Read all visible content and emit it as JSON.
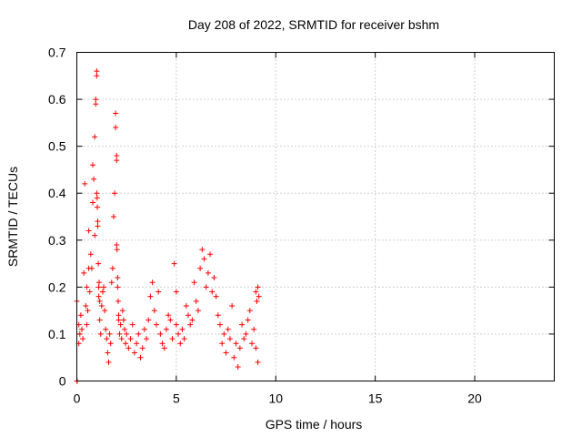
{
  "chart_data": {
    "type": "scatter",
    "title": "Day 208 of 2022, SRMTID for receiver bshm",
    "xlabel": "GPS time / hours",
    "ylabel": "SRMTID / TECUs",
    "xlim": [
      0,
      24
    ],
    "ylim": [
      0,
      0.7
    ],
    "xticks": [
      0,
      5,
      10,
      15,
      20
    ],
    "xtick_labels": [
      "0",
      "5",
      "10",
      "15",
      "20"
    ],
    "yticks": [
      0,
      0.1,
      0.2,
      0.3,
      0.4,
      0.5,
      0.6,
      0.7
    ],
    "ytick_labels": [
      "0",
      "0.1",
      "0.2",
      "0.3",
      "0.4",
      "0.5",
      "0.6",
      "0.7"
    ],
    "grid": true,
    "marker": "+",
    "color": "#ff0000",
    "series": [
      {
        "name": "SRMTID",
        "x": [
          0.0,
          0.0,
          0.02,
          0.1,
          0.1,
          0.15,
          0.2,
          0.25,
          0.3,
          0.35,
          0.4,
          0.45,
          0.5,
          0.5,
          0.55,
          0.6,
          0.6,
          0.65,
          0.7,
          0.75,
          0.8,
          0.8,
          0.85,
          0.9,
          0.9,
          0.95,
          0.95,
          1.0,
          1.0,
          1.0,
          1.02,
          1.03,
          1.05,
          1.05,
          1.08,
          1.1,
          1.1,
          1.12,
          1.15,
          1.15,
          1.2,
          1.25,
          1.3,
          1.35,
          1.4,
          1.45,
          1.5,
          1.55,
          1.6,
          1.65,
          1.7,
          1.75,
          1.8,
          1.85,
          1.9,
          1.95,
          1.95,
          2.0,
          2.0,
          2.0,
          2.02,
          2.05,
          2.05,
          2.08,
          2.1,
          2.1,
          2.15,
          2.2,
          2.25,
          2.3,
          2.35,
          2.4,
          2.45,
          2.5,
          2.6,
          2.7,
          2.8,
          2.9,
          3.0,
          3.1,
          3.2,
          3.3,
          3.4,
          3.5,
          3.6,
          3.7,
          3.8,
          3.9,
          4.0,
          4.1,
          4.2,
          4.3,
          4.4,
          4.5,
          4.6,
          4.7,
          4.8,
          4.9,
          5.0,
          5.0,
          5.1,
          5.2,
          5.3,
          5.4,
          5.5,
          5.6,
          5.7,
          5.8,
          5.9,
          6.0,
          6.1,
          6.2,
          6.3,
          6.4,
          6.5,
          6.6,
          6.7,
          6.8,
          6.9,
          7.0,
          7.1,
          7.2,
          7.3,
          7.4,
          7.5,
          7.6,
          7.7,
          7.8,
          7.9,
          8.0,
          8.1,
          8.2,
          8.3,
          8.4,
          8.5,
          8.6,
          8.7,
          8.8,
          8.9,
          9.0,
          9.0,
          9.05,
          9.1,
          9.1,
          9.15
        ],
        "values": [
          0.17,
          0.0,
          0.0,
          0.12,
          0.08,
          0.1,
          0.14,
          0.11,
          0.09,
          0.23,
          0.42,
          0.16,
          0.12,
          0.2,
          0.15,
          0.24,
          0.32,
          0.19,
          0.27,
          0.24,
          0.46,
          0.38,
          0.43,
          0.52,
          0.31,
          0.59,
          0.6,
          0.65,
          0.66,
          0.4,
          0.39,
          0.37,
          0.34,
          0.33,
          0.25,
          0.18,
          0.2,
          0.21,
          0.13,
          0.17,
          0.1,
          0.16,
          0.19,
          0.2,
          0.15,
          0.11,
          0.09,
          0.06,
          0.04,
          0.1,
          0.08,
          0.21,
          0.24,
          0.35,
          0.4,
          0.57,
          0.54,
          0.48,
          0.47,
          0.29,
          0.28,
          0.22,
          0.2,
          0.17,
          0.14,
          0.13,
          0.1,
          0.12,
          0.09,
          0.15,
          0.13,
          0.11,
          0.08,
          0.1,
          0.07,
          0.09,
          0.12,
          0.06,
          0.08,
          0.1,
          0.05,
          0.07,
          0.11,
          0.09,
          0.13,
          0.18,
          0.21,
          0.15,
          0.12,
          0.19,
          0.1,
          0.08,
          0.07,
          0.11,
          0.14,
          0.13,
          0.09,
          0.25,
          0.19,
          0.12,
          0.1,
          0.08,
          0.11,
          0.09,
          0.16,
          0.14,
          0.12,
          0.13,
          0.21,
          0.17,
          0.15,
          0.24,
          0.28,
          0.26,
          0.2,
          0.23,
          0.27,
          0.19,
          0.22,
          0.18,
          0.14,
          0.12,
          0.08,
          0.1,
          0.06,
          0.11,
          0.09,
          0.16,
          0.05,
          0.08,
          0.03,
          0.07,
          0.12,
          0.09,
          0.1,
          0.13,
          0.15,
          0.08,
          0.11,
          0.07,
          0.19,
          0.17,
          0.2,
          0.04,
          0.18
        ]
      }
    ]
  }
}
